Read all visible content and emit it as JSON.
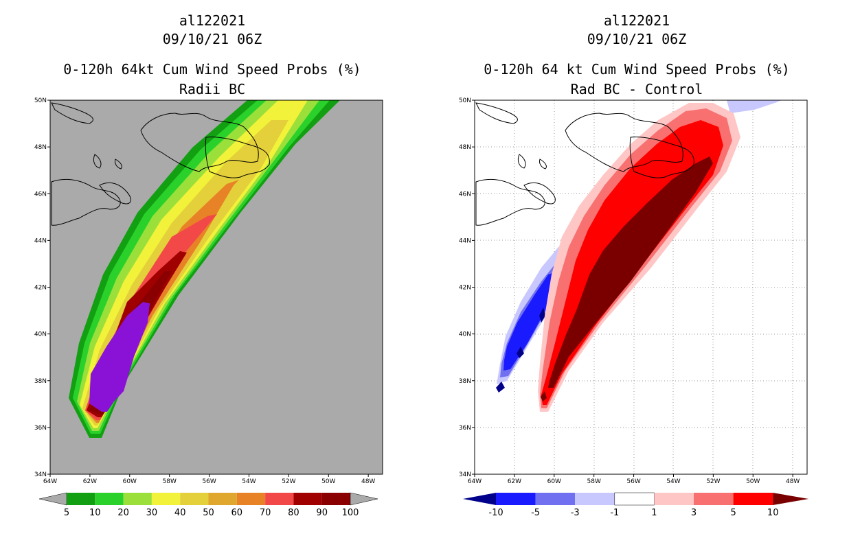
{
  "left": {
    "storm_id": "al122021",
    "datetime": "09/10/21 06Z",
    "title": "0-120h 64kt Cum Wind Speed Probs (%)",
    "subtitle": "Radii BC",
    "lon_labels": [
      "64W",
      "62W",
      "60W",
      "58W",
      "56W",
      "54W",
      "52W",
      "50W",
      "48W"
    ],
    "lat_labels": [
      "34N",
      "36N",
      "38N",
      "40N",
      "42N",
      "44N",
      "46N",
      "48N",
      "50N"
    ],
    "colorbar": {
      "labels": [
        "5",
        "10",
        "20",
        "30",
        "40",
        "50",
        "60",
        "70",
        "80",
        "90",
        "100"
      ],
      "colors": [
        "#12a012",
        "#2bd12b",
        "#9be03a",
        "#f2f23a",
        "#e3d03a",
        "#e0a72f",
        "#e88226",
        "#f24848",
        "#a00000",
        "#8a0000",
        "#8a12d6"
      ]
    }
  },
  "right": {
    "storm_id": "al122021",
    "datetime": "09/10/21 06Z",
    "title": "0-120h 64 kt Cum Wind Speed Probs (%)",
    "subtitle": "Rad BC - Control",
    "lon_labels": [
      "64W",
      "62W",
      "60W",
      "58W",
      "56W",
      "54W",
      "52W",
      "50W",
      "48W"
    ],
    "lat_labels": [
      "34N",
      "36N",
      "38N",
      "40N",
      "42N",
      "44N",
      "46N",
      "48N",
      "50N"
    ],
    "colorbar": {
      "labels": [
        "-10",
        "-5",
        "-3",
        "-1",
        "1",
        "3",
        "5",
        "10"
      ],
      "colors": [
        "#00008a",
        "#1a1aff",
        "#7070f0",
        "#c8c8ff",
        "#ffffff",
        "#ffc6c6",
        "#f87070",
        "#ff0000",
        "#7a0000"
      ]
    }
  },
  "colors": {
    "ocean_gray": "#aaaaaa"
  }
}
